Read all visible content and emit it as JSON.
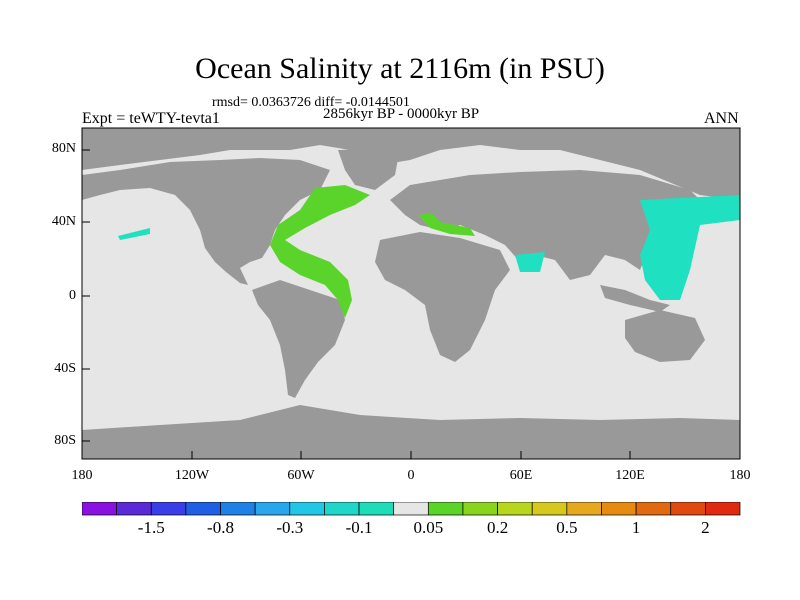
{
  "title": "Ocean Salinity at 2116m (in PSU)",
  "stats": "rmsd= 0.0363726 diff= -0.0144501",
  "period": "2856kyr BP - 0000kyr BP",
  "experiment": "Expt = teWTY-tevta1",
  "season": "ANN",
  "lat_labels": [
    "80N",
    "40N",
    "0",
    "40S",
    "80S"
  ],
  "lon_labels": [
    "180",
    "120W",
    "60W",
    "0",
    "60E",
    "120E",
    "180"
  ],
  "colorbar": {
    "colors": [
      "#8a12e0",
      "#5a2ad6",
      "#3a3ee6",
      "#1f5fe4",
      "#1f80e6",
      "#2aa6ea",
      "#22c6e6",
      "#1fd6c8",
      "#1fdcb8",
      "#e6e6e6",
      "#5ad42a",
      "#8ad41e",
      "#b8d61e",
      "#d6c81e",
      "#e6a81e",
      "#e68a12",
      "#e06a12",
      "#e04a10",
      "#e02a10"
    ],
    "labels": [
      "-1.5",
      "-0.8",
      "-0.3",
      "-0.1",
      "0.05",
      "0.2",
      "0.5",
      "1",
      "2"
    ]
  },
  "map_colors": {
    "land": "#999999",
    "ocean": "#e6e6e6",
    "positive": "#5ad42a",
    "negative": "#1fe0c0"
  }
}
